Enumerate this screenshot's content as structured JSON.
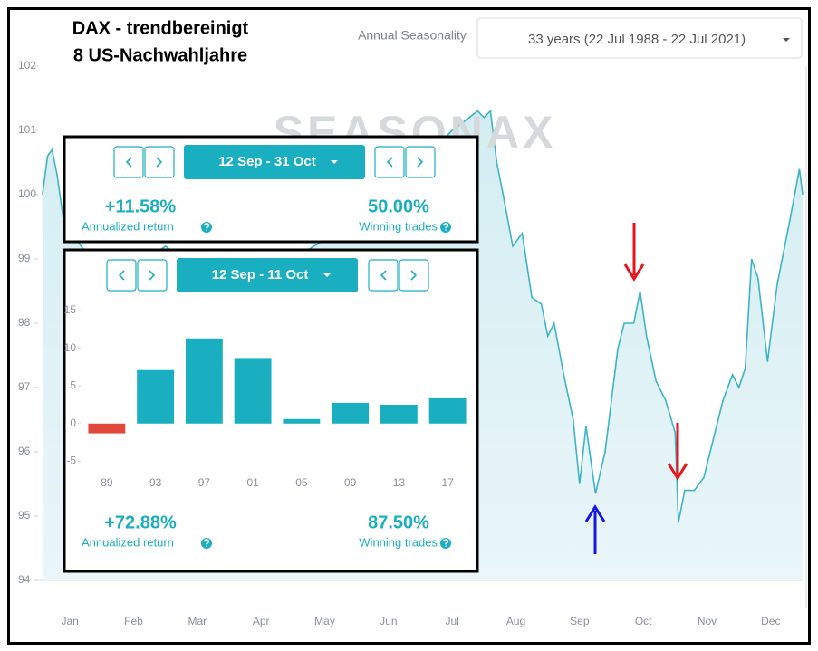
{
  "header": {
    "title_line1": "DAX - trendbereinigt",
    "title_line2": "8 US-Nachwahljahre"
  },
  "toolbar": {
    "label": "Annual Seasonality",
    "dropdown": "33 years (22 Jul 1988 - 22 Jul 2021)"
  },
  "watermark": "SEASONAX",
  "chart_data": [
    {
      "type": "line",
      "color": "#3db3c7",
      "categories": [
        "Jan",
        "Feb",
        "Mar",
        "Apr",
        "May",
        "Jun",
        "Jul",
        "Aug",
        "Sep",
        "Oct",
        "Nov",
        "Dec"
      ],
      "x": [
        0.07,
        0.15,
        0.22,
        0.3,
        0.4,
        0.6,
        0.9,
        1.2,
        1.6,
        2.0,
        2.5,
        3.0,
        3.5,
        4.0,
        4.5,
        5.0,
        5.5,
        6.0,
        6.5,
        6.9,
        7.0,
        7.1,
        7.2,
        7.3,
        7.45,
        7.6,
        7.75,
        7.9,
        8.0,
        8.1,
        8.25,
        8.4,
        8.5,
        8.6,
        8.75,
        8.9,
        9.0,
        9.1,
        9.2,
        9.35,
        9.45,
        9.55,
        9.7,
        9.85,
        10.0,
        10.05,
        10.15,
        10.3,
        10.45,
        10.6,
        10.75,
        10.9,
        11.0,
        11.1,
        11.2,
        11.3,
        11.45,
        11.6,
        11.8,
        11.95,
        12.0
      ],
      "values": [
        100.0,
        100.6,
        100.7,
        100.3,
        99.6,
        99.3,
        98.9,
        98.6,
        98.9,
        99.2,
        98.8,
        98.5,
        98.7,
        99.0,
        99.3,
        99.6,
        100.0,
        100.5,
        101.0,
        101.3,
        101.2,
        101.3,
        100.5,
        100.0,
        99.2,
        99.4,
        98.4,
        98.3,
        97.8,
        98.0,
        97.2,
        96.5,
        95.5,
        96.4,
        95.35,
        96.0,
        96.8,
        97.6,
        98.0,
        98.0,
        98.5,
        97.8,
        97.1,
        96.8,
        96.3,
        94.9,
        95.4,
        95.4,
        95.6,
        96.2,
        96.8,
        97.2,
        97.0,
        97.3,
        99.0,
        98.7,
        97.4,
        98.6,
        99.6,
        100.4,
        100.0
      ],
      "xlim": [
        0,
        12
      ],
      "ylim": [
        94,
        102
      ],
      "yticks": [
        94,
        95,
        96,
        97,
        98,
        99,
        100,
        101,
        102
      ]
    },
    {
      "type": "bar",
      "categories": [
        "89",
        "93",
        "97",
        "01",
        "05",
        "09",
        "13",
        "17"
      ],
      "values": [
        -1.3,
        7.1,
        11.3,
        8.7,
        0.6,
        2.75,
        2.5,
        3.35
      ],
      "colors": [
        "#e0483e",
        "#1aafc0",
        "#1aafc0",
        "#1aafc0",
        "#1aafc0",
        "#1aafc0",
        "#1aafc0",
        "#1aafc0"
      ],
      "ylim": [
        -7,
        15
      ],
      "yticks": [
        -5,
        0,
        5,
        10,
        15
      ]
    }
  ],
  "panels": [
    {
      "range": "12 Sep - 31 Oct",
      "return": "+11.58%",
      "return_label": "Annualized return",
      "winning": "50.00%",
      "winning_label": "Winning trades"
    },
    {
      "range": "12 Sep - 11 Oct",
      "return": "+72.88%",
      "return_label": "Annualized return",
      "winning": "87.50%",
      "winning_label": "Winning trades"
    }
  ]
}
